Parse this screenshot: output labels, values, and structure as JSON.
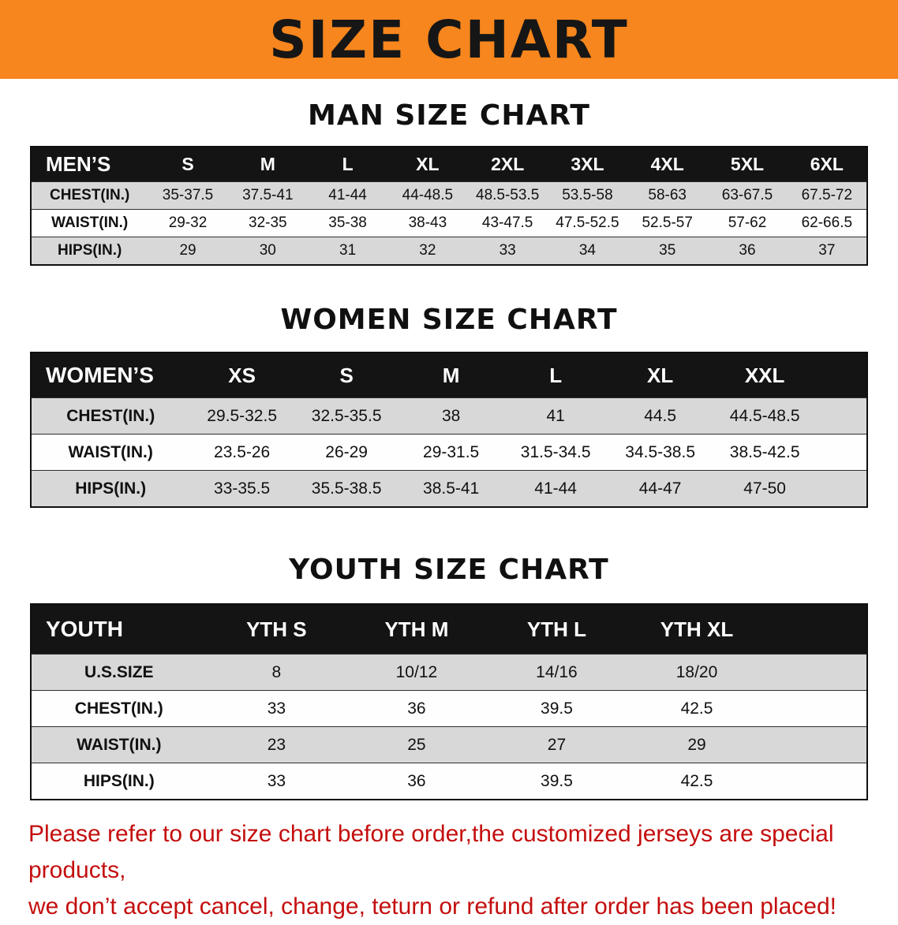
{
  "banner": {
    "title": "SIZE CHART"
  },
  "sections": [
    {
      "heading": "MAN SIZE CHART",
      "table": {
        "header": [
          "MEN’S",
          "S",
          "M",
          "L",
          "XL",
          "2XL",
          "3XL",
          "4XL",
          "5XL",
          "6XL"
        ],
        "rows": [
          {
            "label": "CHEST(IN.)",
            "values": [
              "35-37.5",
              "37.5-41",
              "41-44",
              "44-48.5",
              "48.5-53.5",
              "53.5-58",
              "58-63",
              "63-67.5",
              "67.5-72"
            ]
          },
          {
            "label": "WAIST(IN.)",
            "values": [
              "29-32",
              "32-35",
              "35-38",
              "38-43",
              "43-47.5",
              "47.5-52.5",
              "52.5-57",
              "57-62",
              "62-66.5"
            ]
          },
          {
            "label": "HIPS(IN.)",
            "values": [
              "29",
              "30",
              "31",
              "32",
              "33",
              "34",
              "35",
              "36",
              "37"
            ]
          }
        ]
      }
    },
    {
      "heading": "WOMEN SIZE CHART",
      "table": {
        "header": [
          "WOMEN’S",
          "XS",
          "S",
          "M",
          "L",
          "XL",
          "XXL"
        ],
        "rows": [
          {
            "label": "CHEST(IN.)",
            "values": [
              "29.5-32.5",
              "32.5-35.5",
              "38",
              "41",
              "44.5",
              "44.5-48.5"
            ]
          },
          {
            "label": "WAIST(IN.)",
            "values": [
              "23.5-26",
              "26-29",
              "29-31.5",
              "31.5-34.5",
              "34.5-38.5",
              "38.5-42.5"
            ]
          },
          {
            "label": "HIPS(IN.)",
            "values": [
              "33-35.5",
              "35.5-38.5",
              "38.5-41",
              "41-44",
              "44-47",
              "47-50"
            ]
          }
        ]
      }
    },
    {
      "heading": "YOUTH SIZE CHART",
      "table": {
        "header": [
          "YOUTH",
          "YTH S",
          "YTH M",
          "YTH L",
          "YTH XL"
        ],
        "rows": [
          {
            "label": "U.S.SIZE",
            "values": [
              "8",
              "10/12",
              "14/16",
              "18/20"
            ]
          },
          {
            "label": "CHEST(IN.)",
            "values": [
              "33",
              "36",
              "39.5",
              "42.5"
            ]
          },
          {
            "label": "WAIST(IN.)",
            "values": [
              "23",
              "25",
              "27",
              "29"
            ]
          },
          {
            "label": "HIPS(IN.)",
            "values": [
              "33",
              "36",
              "39.5",
              "42.5"
            ]
          }
        ]
      }
    }
  ],
  "footer": {
    "line1": "Please refer to our size chart before order,the customized jerseys are special products,",
    "line2": "we don’t accept cancel, change, teturn or refund after order has been placed!"
  },
  "colors": {
    "banner_bg": "#F6861D",
    "banner_text": "#161616",
    "table_header_bg": "#141414",
    "table_header_text": "#FFFFFF",
    "stripe_gray": "#D8D8D8",
    "notice_red": "#C40E0E"
  }
}
